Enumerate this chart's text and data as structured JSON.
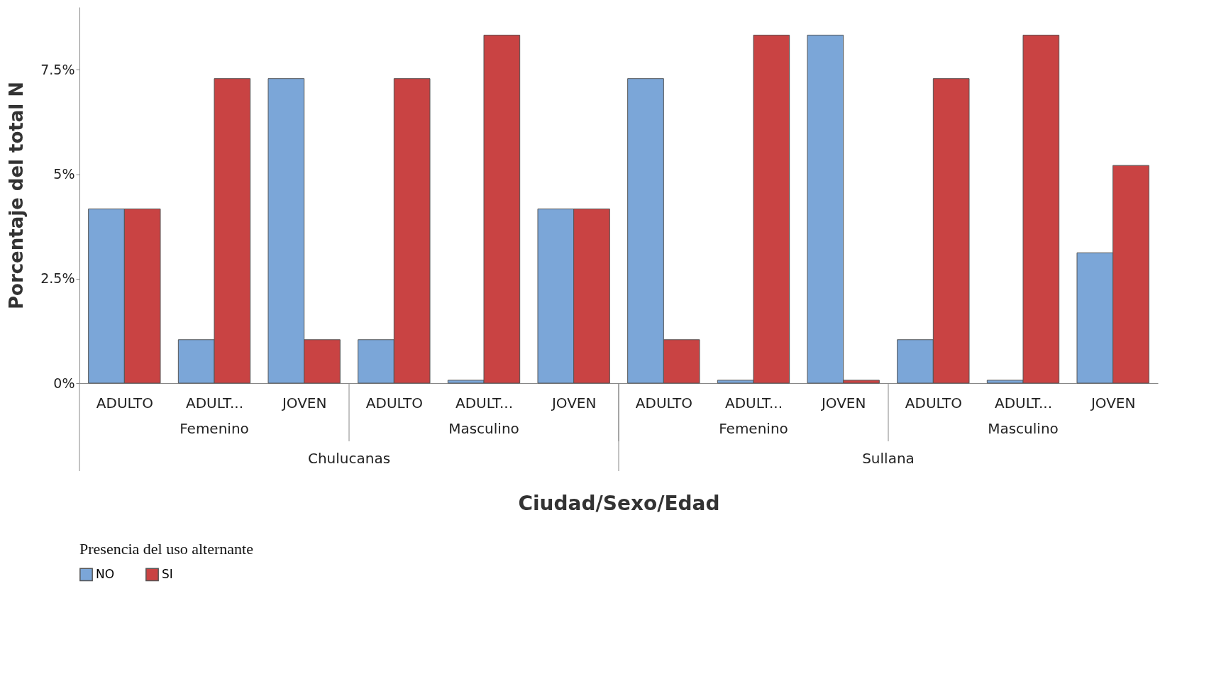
{
  "chart_data": {
    "type": "bar",
    "xlabel": "Ciudad/Sexo/Edad",
    "ylabel": "Porcentaje del total N",
    "legend_title": "Presencia del uso alternante",
    "legend": "bottom left",
    "grid": false,
    "categories": [
      "ADULTO",
      "ADULT...",
      "JOVEN",
      "ADULTO",
      "ADULT...",
      "JOVEN",
      "ADULTO",
      "ADULT...",
      "JOVEN",
      "ADULTO",
      "ADULT...",
      "JOVEN"
    ],
    "series": [
      {
        "name": "NO",
        "color": "#7ba6d8",
        "values": [
          4.17,
          1.04,
          7.29,
          1.04,
          0.07,
          4.17,
          7.29,
          0.07,
          8.33,
          1.04,
          0.07,
          3.12
        ]
      },
      {
        "name": "SI",
        "color": "#c94343",
        "values": [
          4.17,
          7.29,
          1.04,
          7.29,
          8.33,
          4.17,
          1.04,
          8.33,
          0.07,
          7.29,
          8.33,
          5.21
        ]
      }
    ],
    "ylim": [
      0,
      9
    ],
    "yticks": [
      {
        "value": 0,
        "label": "0%"
      },
      {
        "value": 2.5,
        "label": "2.5%"
      },
      {
        "value": 5,
        "label": "5%"
      },
      {
        "value": 7.5,
        "label": "7.5%"
      }
    ],
    "annotations": [
      "Femenino",
      "Masculino",
      "Femenino",
      "Masculino",
      "Chulucanas",
      "Sullana"
    ]
  }
}
